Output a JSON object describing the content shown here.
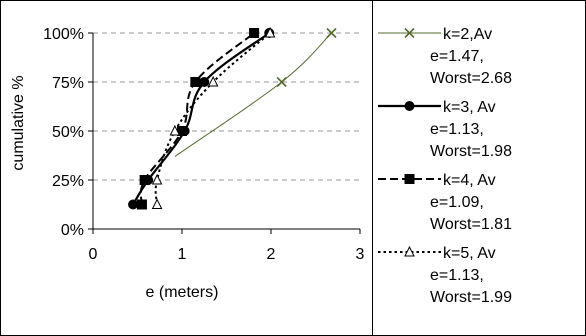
{
  "chart_data": {
    "type": "line",
    "xlabel": "e (meters)",
    "ylabel": "cumulative %",
    "xlim": [
      0,
      3
    ],
    "ylim": [
      0,
      100
    ],
    "x_ticks": [
      "0",
      "1",
      "2",
      "3"
    ],
    "y_ticks": [
      "0%",
      "25%",
      "50%",
      "75%",
      "100%"
    ],
    "y_tick_values": [
      0,
      25,
      50,
      75,
      100
    ],
    "grid": "horizontal dashed gray lines at 25%, 50%, 75%, 100%",
    "legend_position": "right",
    "series": [
      {
        "name": "k=2,Av e=1.47, Worst=2.68",
        "legend_lines": [
          "k=2,Av",
          "e=1.47,",
          "Worst=2.68"
        ],
        "line_style": "thin solid",
        "marker": "x",
        "color": "#556b2f",
        "points": [
          [
            2.12,
            75
          ],
          [
            2.68,
            100
          ]
        ]
      },
      {
        "name": "k=3, Av e=1.13, Worst=1.98",
        "legend_lines": [
          "k=3, Av",
          "e=1.13,",
          "Worst=1.98"
        ],
        "line_style": "thick solid",
        "marker": "circle-filled",
        "color": "#000000",
        "points": [
          [
            0.45,
            12.5
          ],
          [
            0.62,
            25
          ],
          [
            1.03,
            50
          ],
          [
            1.25,
            75
          ],
          [
            1.98,
            100
          ]
        ]
      },
      {
        "name": "k=4, Av e=1.09, Worst=1.81",
        "legend_lines": [
          "k=4, Av",
          "e=1.09,",
          "Worst=1.81"
        ],
        "line_style": "dashed",
        "marker": "square-filled",
        "color": "#000000",
        "points": [
          [
            0.55,
            12.5
          ],
          [
            0.58,
            25
          ],
          [
            1.0,
            50
          ],
          [
            1.15,
            75
          ],
          [
            1.81,
            100
          ]
        ]
      },
      {
        "name": "k=5, Av e=1.13, Worst=1.99",
        "legend_lines": [
          "k=5, Av",
          "e=1.13,",
          "Worst=1.99"
        ],
        "line_style": "dotted",
        "marker": "triangle-open",
        "color": "#000000",
        "points": [
          [
            0.72,
            12.5
          ],
          [
            0.72,
            25
          ],
          [
            0.92,
            50
          ],
          [
            1.35,
            75
          ],
          [
            1.99,
            100
          ]
        ]
      }
    ]
  }
}
